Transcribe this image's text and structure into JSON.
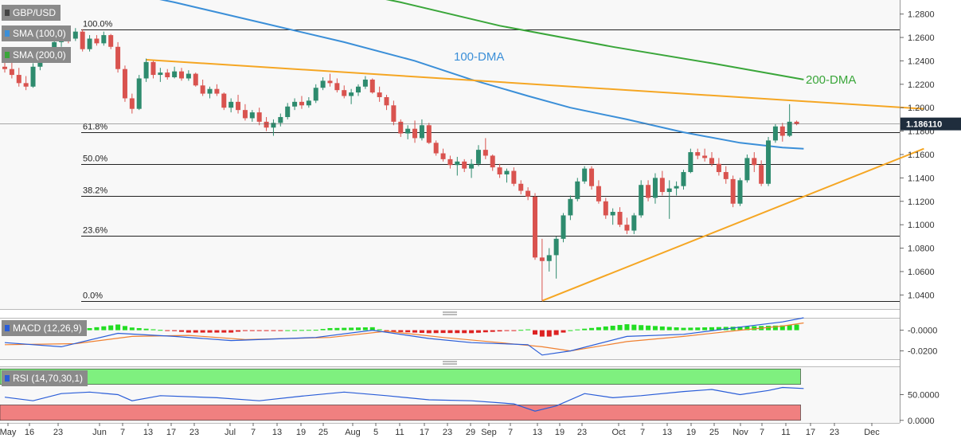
{
  "chart_data": {
    "type": "candlestick",
    "symbol": "GBP/USD",
    "indicators": {
      "sma100_label": "SMA (100,0)",
      "sma200_label": "SMA (200,0)",
      "macd_label": "MACD (12,26,9)",
      "rsi_label": "RSI (14,70,30,1)"
    },
    "annotations": {
      "dma100": "100-DMA",
      "dma200": "200-DMA"
    },
    "current_price": "1.186110",
    "price_axis": {
      "range": [
        1.028,
        1.292
      ],
      "ticks": [
        "1.2800",
        "1.2600",
        "1.2400",
        "1.2200",
        "1.2000",
        "1.1800",
        "1.1600",
        "1.1400",
        "1.1200",
        "1.1000",
        "1.0800",
        "1.0600",
        "1.0400"
      ]
    },
    "fibonacci": [
      {
        "label": "100.0%",
        "price": 1.2667
      },
      {
        "label": "61.8%",
        "price": 1.1791
      },
      {
        "label": "50.0%",
        "price": 1.1518
      },
      {
        "label": "38.2%",
        "price": 1.1246
      },
      {
        "label": "23.6%",
        "price": 1.0908
      },
      {
        "label": "0.0%",
        "price": 1.035
      }
    ],
    "macd_axis": {
      "range": [
        -0.028,
        0.012
      ],
      "ticks": [
        "-0.0000",
        "-0.0200"
      ]
    },
    "rsi_axis": {
      "range": [
        -5,
        105
      ],
      "ticks": [
        "50.0000",
        "0.0000"
      ],
      "overbought": 70,
      "oversold": 30
    },
    "x_axis": {
      "labels": [
        "May",
        "16",
        "23",
        "Jun",
        "7",
        "13",
        "17",
        "23",
        "Jul",
        "7",
        "13",
        "19",
        "25",
        "Aug",
        "5",
        "11",
        "17",
        "23",
        "29",
        "Sep",
        "7",
        "13",
        "19",
        "23",
        "Oct",
        "7",
        "13",
        "19",
        "25",
        "Nov",
        "7",
        "11",
        "17",
        "23",
        "Dec"
      ]
    },
    "candles": [
      [
        1.235,
        1.24,
        1.23,
        1.233
      ],
      [
        1.233,
        1.239,
        1.225,
        1.228
      ],
      [
        1.228,
        1.234,
        1.218,
        1.221
      ],
      [
        1.221,
        1.227,
        1.215,
        1.218
      ],
      [
        1.218,
        1.238,
        1.217,
        1.235
      ],
      [
        1.235,
        1.245,
        1.232,
        1.242
      ],
      [
        1.242,
        1.25,
        1.24,
        1.247
      ],
      [
        1.247,
        1.26,
        1.245,
        1.256
      ],
      [
        1.256,
        1.264,
        1.252,
        1.26
      ],
      [
        1.26,
        1.266,
        1.255,
        1.259
      ],
      [
        1.259,
        1.268,
        1.257,
        1.265
      ],
      [
        1.265,
        1.267,
        1.248,
        1.25
      ],
      [
        1.25,
        1.262,
        1.248,
        1.259
      ],
      [
        1.259,
        1.262,
        1.253,
        1.255
      ],
      [
        1.255,
        1.265,
        1.253,
        1.262
      ],
      [
        1.262,
        1.263,
        1.25,
        1.252
      ],
      [
        1.252,
        1.256,
        1.23,
        1.233
      ],
      [
        1.233,
        1.236,
        1.205,
        1.208
      ],
      [
        1.208,
        1.212,
        1.195,
        1.199
      ],
      [
        1.199,
        1.228,
        1.198,
        1.225
      ],
      [
        1.225,
        1.242,
        1.222,
        1.239
      ],
      [
        1.239,
        1.24,
        1.225,
        1.228
      ],
      [
        1.228,
        1.234,
        1.222,
        1.23
      ],
      [
        1.23,
        1.233,
        1.224,
        1.226
      ],
      [
        1.226,
        1.235,
        1.225,
        1.231
      ],
      [
        1.231,
        1.234,
        1.223,
        1.225
      ],
      [
        1.225,
        1.232,
        1.223,
        1.229
      ],
      [
        1.229,
        1.23,
        1.218,
        1.219
      ],
      [
        1.219,
        1.224,
        1.21,
        1.212
      ],
      [
        1.212,
        1.218,
        1.208,
        1.216
      ],
      [
        1.216,
        1.22,
        1.21,
        1.212
      ],
      [
        1.212,
        1.213,
        1.198,
        1.2
      ],
      [
        1.2,
        1.208,
        1.196,
        1.205
      ],
      [
        1.205,
        1.211,
        1.195,
        1.198
      ],
      [
        1.198,
        1.203,
        1.189,
        1.191
      ],
      [
        1.191,
        1.198,
        1.188,
        1.196
      ],
      [
        1.196,
        1.2,
        1.185,
        1.188
      ],
      [
        1.188,
        1.192,
        1.18,
        1.183
      ],
      [
        1.183,
        1.19,
        1.176,
        1.187
      ],
      [
        1.187,
        1.195,
        1.184,
        1.192
      ],
      [
        1.192,
        1.204,
        1.19,
        1.201
      ],
      [
        1.201,
        1.208,
        1.198,
        1.205
      ],
      [
        1.205,
        1.21,
        1.199,
        1.202
      ],
      [
        1.202,
        1.209,
        1.2,
        1.206
      ],
      [
        1.206,
        1.22,
        1.204,
        1.217
      ],
      [
        1.217,
        1.226,
        1.215,
        1.223
      ],
      [
        1.223,
        1.229,
        1.218,
        1.221
      ],
      [
        1.221,
        1.225,
        1.213,
        1.215
      ],
      [
        1.215,
        1.219,
        1.208,
        1.21
      ],
      [
        1.21,
        1.216,
        1.203,
        1.213
      ],
      [
        1.213,
        1.22,
        1.21,
        1.218
      ],
      [
        1.218,
        1.227,
        1.216,
        1.224
      ],
      [
        1.224,
        1.225,
        1.212,
        1.213
      ],
      [
        1.213,
        1.218,
        1.205,
        1.209
      ],
      [
        1.209,
        1.211,
        1.198,
        1.202
      ],
      [
        1.202,
        1.206,
        1.185,
        1.188
      ],
      [
        1.188,
        1.19,
        1.175,
        1.178
      ],
      [
        1.178,
        1.185,
        1.173,
        1.182
      ],
      [
        1.182,
        1.189,
        1.17,
        1.174
      ],
      [
        1.174,
        1.19,
        1.172,
        1.185
      ],
      [
        1.185,
        1.187,
        1.169,
        1.17
      ],
      [
        1.17,
        1.172,
        1.159,
        1.161
      ],
      [
        1.161,
        1.165,
        1.154,
        1.156
      ],
      [
        1.156,
        1.159,
        1.148,
        1.151
      ],
      [
        1.151,
        1.158,
        1.142,
        1.154
      ],
      [
        1.154,
        1.156,
        1.145,
        1.148
      ],
      [
        1.148,
        1.156,
        1.14,
        1.152
      ],
      [
        1.152,
        1.168,
        1.15,
        1.164
      ],
      [
        1.164,
        1.174,
        1.156,
        1.159
      ],
      [
        1.159,
        1.16,
        1.146,
        1.149
      ],
      [
        1.149,
        1.152,
        1.14,
        1.143
      ],
      [
        1.143,
        1.148,
        1.136,
        1.146
      ],
      [
        1.146,
        1.149,
        1.133,
        1.135
      ],
      [
        1.135,
        1.138,
        1.126,
        1.129
      ],
      [
        1.129,
        1.132,
        1.121,
        1.124
      ],
      [
        1.124,
        1.127,
        1.07,
        1.072
      ],
      [
        1.072,
        1.088,
        1.035,
        1.069
      ],
      [
        1.069,
        1.08,
        1.06,
        1.074
      ],
      [
        1.074,
        1.09,
        1.054,
        1.088
      ],
      [
        1.088,
        1.11,
        1.085,
        1.108
      ],
      [
        1.108,
        1.125,
        1.104,
        1.122
      ],
      [
        1.122,
        1.14,
        1.12,
        1.137
      ],
      [
        1.137,
        1.15,
        1.135,
        1.148
      ],
      [
        1.148,
        1.15,
        1.13,
        1.133
      ],
      [
        1.133,
        1.138,
        1.118,
        1.12
      ],
      [
        1.12,
        1.123,
        1.105,
        1.108
      ],
      [
        1.108,
        1.114,
        1.1,
        1.111
      ],
      [
        1.111,
        1.115,
        1.098,
        1.1
      ],
      [
        1.1,
        1.106,
        1.092,
        1.095
      ],
      [
        1.095,
        1.11,
        1.092,
        1.108
      ],
      [
        1.108,
        1.138,
        1.106,
        1.134
      ],
      [
        1.134,
        1.138,
        1.12,
        1.123
      ],
      [
        1.123,
        1.144,
        1.118,
        1.14
      ],
      [
        1.14,
        1.146,
        1.125,
        1.128
      ],
      [
        1.128,
        1.138,
        1.105,
        1.131
      ],
      [
        1.131,
        1.137,
        1.125,
        1.133
      ],
      [
        1.133,
        1.147,
        1.13,
        1.145
      ],
      [
        1.145,
        1.165,
        1.144,
        1.162
      ],
      [
        1.162,
        1.165,
        1.156,
        1.159
      ],
      [
        1.159,
        1.165,
        1.154,
        1.157
      ],
      [
        1.157,
        1.162,
        1.15,
        1.152
      ],
      [
        1.152,
        1.157,
        1.142,
        1.145
      ],
      [
        1.145,
        1.15,
        1.135,
        1.139
      ],
      [
        1.139,
        1.142,
        1.115,
        1.118
      ],
      [
        1.118,
        1.14,
        1.116,
        1.138
      ],
      [
        1.138,
        1.16,
        1.136,
        1.157
      ],
      [
        1.157,
        1.162,
        1.145,
        1.151
      ],
      [
        1.151,
        1.155,
        1.133,
        1.135
      ],
      [
        1.135,
        1.175,
        1.133,
        1.172
      ],
      [
        1.172,
        1.186,
        1.17,
        1.184
      ],
      [
        1.184,
        1.187,
        1.171,
        1.176
      ],
      [
        1.176,
        1.203,
        1.175,
        1.188
      ],
      [
        1.188,
        1.189,
        1.185,
        1.1861
      ]
    ],
    "sma100": [
      [
        0,
        1.328
      ],
      [
        12,
        1.305
      ],
      [
        24,
        1.29
      ],
      [
        36,
        1.273
      ],
      [
        48,
        1.256
      ],
      [
        58,
        1.24
      ],
      [
        66,
        1.224
      ],
      [
        74,
        1.21
      ],
      [
        80,
        1.2
      ],
      [
        88,
        1.19
      ],
      [
        96,
        1.179
      ],
      [
        104,
        1.17
      ],
      [
        110,
        1.166
      ],
      [
        113,
        1.165
      ]
    ],
    "sma200": [
      [
        0,
        1.36
      ],
      [
        20,
        1.335
      ],
      [
        40,
        1.31
      ],
      [
        56,
        1.29
      ],
      [
        70,
        1.27
      ],
      [
        86,
        1.252
      ],
      [
        100,
        1.238
      ],
      [
        113,
        1.224
      ]
    ],
    "resistance_line": {
      "from": [
        20,
        1.241
      ],
      "to": [
        130,
        1.199
      ]
    },
    "support_line": {
      "from": [
        76,
        1.035
      ],
      "to": [
        130,
        1.165
      ]
    },
    "macd_line": [
      [
        0,
        -0.012
      ],
      [
        8,
        -0.016
      ],
      [
        16,
        -0.003
      ],
      [
        24,
        -0.006
      ],
      [
        32,
        -0.01
      ],
      [
        44,
        -0.007
      ],
      [
        52,
        0.0
      ],
      [
        60,
        -0.008
      ],
      [
        66,
        -0.012
      ],
      [
        74,
        -0.014
      ],
      [
        76,
        -0.024
      ],
      [
        80,
        -0.02
      ],
      [
        88,
        -0.006
      ],
      [
        96,
        -0.004
      ],
      [
        104,
        0.003
      ],
      [
        110,
        0.008
      ],
      [
        113,
        0.012
      ]
    ],
    "macd_signal": [
      [
        0,
        -0.014
      ],
      [
        10,
        -0.013
      ],
      [
        18,
        -0.006
      ],
      [
        26,
        -0.005
      ],
      [
        34,
        -0.009
      ],
      [
        46,
        -0.007
      ],
      [
        54,
        -0.001
      ],
      [
        62,
        -0.007
      ],
      [
        70,
        -0.012
      ],
      [
        76,
        -0.016
      ],
      [
        80,
        -0.02
      ],
      [
        88,
        -0.011
      ],
      [
        96,
        -0.006
      ],
      [
        104,
        0.0
      ],
      [
        110,
        0.004
      ],
      [
        113,
        0.007
      ]
    ],
    "rsi": [
      [
        0,
        45
      ],
      [
        4,
        38
      ],
      [
        8,
        52
      ],
      [
        12,
        55
      ],
      [
        16,
        50
      ],
      [
        18,
        38
      ],
      [
        22,
        48
      ],
      [
        30,
        44
      ],
      [
        36,
        38
      ],
      [
        42,
        47
      ],
      [
        48,
        55
      ],
      [
        54,
        48
      ],
      [
        60,
        40
      ],
      [
        66,
        38
      ],
      [
        72,
        32
      ],
      [
        75,
        18
      ],
      [
        78,
        28
      ],
      [
        82,
        52
      ],
      [
        86,
        44
      ],
      [
        90,
        48
      ],
      [
        96,
        56
      ],
      [
        100,
        60
      ],
      [
        104,
        50
      ],
      [
        108,
        58
      ],
      [
        110,
        64
      ],
      [
        113,
        62
      ]
    ]
  }
}
